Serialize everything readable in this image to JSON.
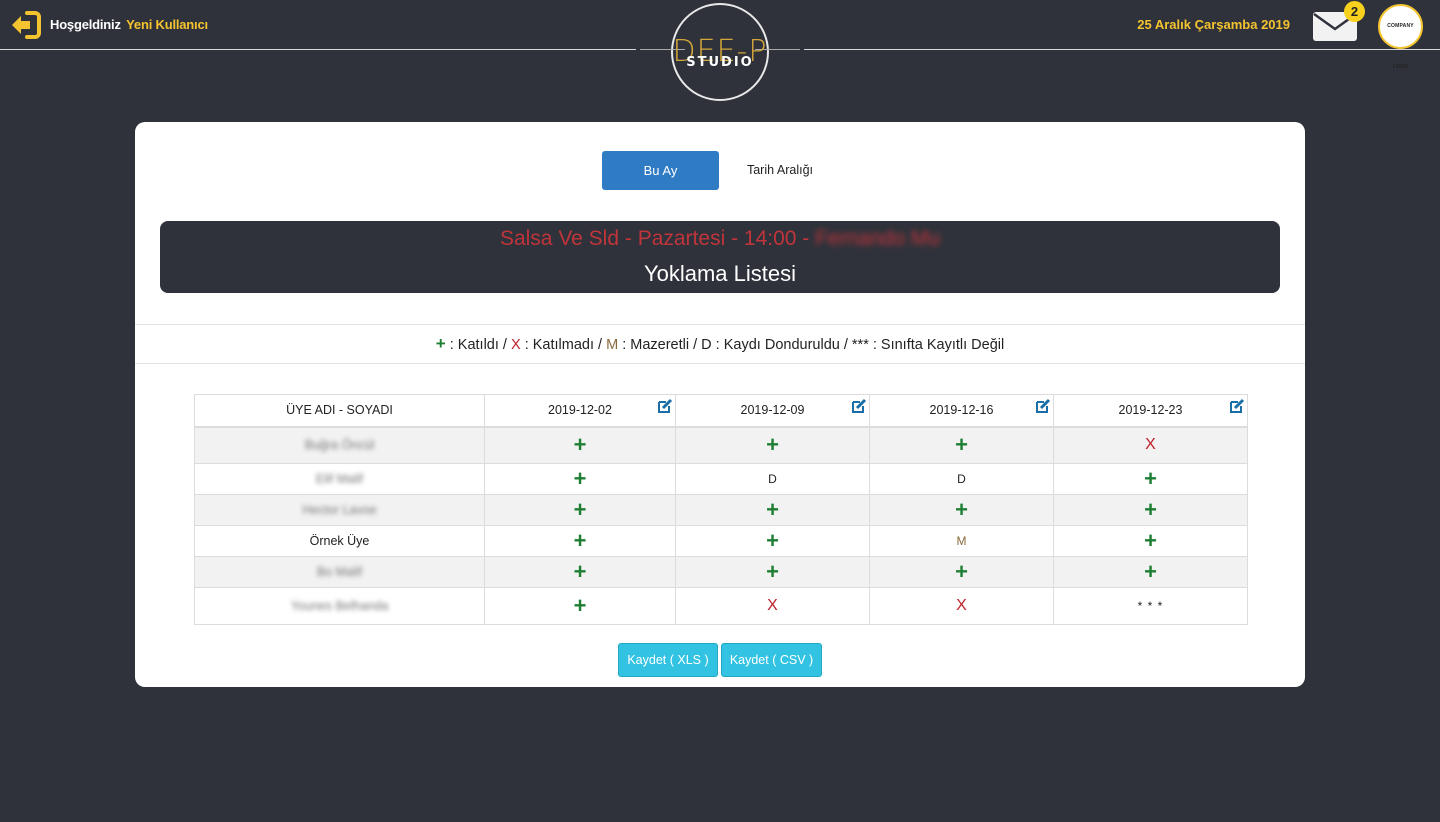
{
  "header": {
    "welcome_label": "Hoşgeldiniz",
    "user_name": "Yeni Kullanıcı",
    "date": "25 Aralık Çarşamba 2019",
    "mail_count": "2",
    "company_logo_text": "COMPANY LOGO",
    "studio_logo_top": "DEE-P",
    "studio_logo_bottom": "STUDIO",
    "icons": {
      "logout": "logout-arrow-icon",
      "mail": "envelope-icon"
    },
    "colors": {
      "accent": "#f4c430",
      "background": "#2f323a"
    }
  },
  "tabs": {
    "this_month": "Bu Ay",
    "date_range": "Tarih Aralığı",
    "active": "this_month"
  },
  "class_info": {
    "class_line": "Salsa Ve Sld - Pazartesi - 14:00 -",
    "instructor": "Fernando Mu",
    "list_title": "Yoklama Listesi"
  },
  "legend": {
    "plus_symbol": "+",
    "plus_text": ": Katıldı /",
    "x_symbol": "X",
    "x_text": ": Katılmadı /",
    "m_symbol": "M",
    "m_text": ": Mazeretli / D : Kaydı Donduruldu / *** : Sınıfta Kayıtlı Değil"
  },
  "table": {
    "name_header": "ÜYE ADI - SOYADI",
    "dates": [
      "2019-12-02",
      "2019-12-09",
      "2019-12-16",
      "2019-12-23"
    ],
    "rows": [
      {
        "name": "Buğra Öncül",
        "blurred": true,
        "marks": [
          "+",
          "+",
          "+",
          "X"
        ]
      },
      {
        "name": "Elif Malif",
        "blurred": true,
        "marks": [
          "+",
          "D",
          "D",
          "+"
        ]
      },
      {
        "name": "Hector Lavoe",
        "blurred": true,
        "marks": [
          "+",
          "+",
          "+",
          "+"
        ]
      },
      {
        "name": "Örnek Üye",
        "blurred": false,
        "marks": [
          "+",
          "+",
          "M",
          "+"
        ]
      },
      {
        "name": "Bo Malif",
        "blurred": true,
        "marks": [
          "+",
          "+",
          "+",
          "+"
        ]
      },
      {
        "name": "Younes Belhanda",
        "blurred": true,
        "marks": [
          "+",
          "X",
          "X",
          "* * *"
        ]
      }
    ]
  },
  "buttons": {
    "save_xls": "Kaydet ( XLS )",
    "save_csv": "Kaydet ( CSV )"
  }
}
